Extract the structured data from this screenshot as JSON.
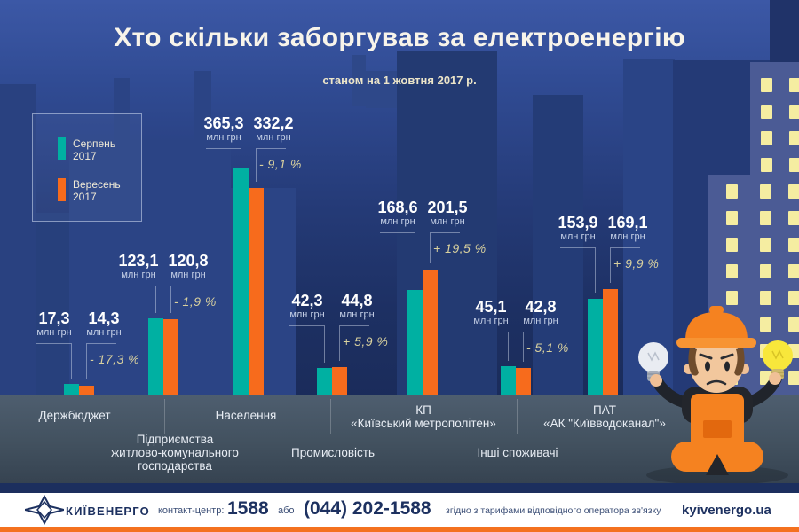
{
  "header": {
    "title": "Хто скільки заборгував за електроенергію",
    "subtitle": "станом на 1 жовтня 2017 р."
  },
  "legend": {
    "items": [
      {
        "line1": "Серпень",
        "line2": "2017",
        "color": "#00b0a2"
      },
      {
        "line1": "Вересень",
        "line2": "2017",
        "color": "#f76b1c"
      }
    ]
  },
  "chart_data": {
    "type": "bar",
    "title": "Хто скільки заборгував за електроенергію",
    "subtitle": "станом на 1 жовтня 2017 р.",
    "unit": "млн грн",
    "ylim": [
      0,
      380
    ],
    "grid": false,
    "legend_position": "top-left",
    "series": [
      {
        "name": "Серпень 2017",
        "color": "#00b0a2"
      },
      {
        "name": "Вересень 2017",
        "color": "#f76b1c"
      }
    ],
    "groups": [
      {
        "category_lines": [
          "Держбюджет"
        ],
        "values": [
          17.3,
          14.3
        ],
        "display": [
          "17,3",
          "14,3"
        ],
        "change": "- 17,3 %"
      },
      {
        "category_lines": [
          "Підприємства",
          "житлово-комунального",
          "господарства"
        ],
        "values": [
          123.1,
          120.8
        ],
        "display": [
          "123,1",
          "120,8"
        ],
        "change": "- 1,9 %"
      },
      {
        "category_lines": [
          "Населення"
        ],
        "values": [
          365.3,
          332.2
        ],
        "display": [
          "365,3",
          "332,2"
        ],
        "change": "- 9,1 %"
      },
      {
        "category_lines": [
          "Промисловість"
        ],
        "values": [
          42.3,
          44.8
        ],
        "display": [
          "42,3",
          "44,8"
        ],
        "change": "+ 5,9 %"
      },
      {
        "category_lines": [
          "КП",
          "«Київський метрополітен»"
        ],
        "values": [
          168.6,
          201.5
        ],
        "display": [
          "168,6",
          "201,5"
        ],
        "change": "+ 19,5 %"
      },
      {
        "category_lines": [
          "Інші споживачі"
        ],
        "values": [
          45.1,
          42.8
        ],
        "display": [
          "45,1",
          "42,8"
        ],
        "change": "- 5,1 %"
      },
      {
        "category_lines": [
          "ПАТ",
          "«АК \"Київводоканал\"»"
        ],
        "values": [
          153.9,
          169.1
        ],
        "display": [
          "153,9",
          "169,1"
        ],
        "change": "+ 9,9 %"
      }
    ]
  },
  "footer": {
    "brand": "КИЇВЕНЕРГО",
    "contact_label": "контакт-центр:",
    "phone_short": "1588",
    "or_label": "або",
    "phone_full": "(044) 202-1588",
    "tariff_note": "згідно з тарифами відповідного оператора зв'язку",
    "website": "kyivenergo.ua"
  },
  "colors": {
    "august_bar": "#00b0a2",
    "september_bar": "#f76b1c",
    "percent_text": "#d9d19e",
    "band": "#42515f",
    "footer_navy": "#1d3160",
    "footer_orange": "#f4711f",
    "window_light": "#f5eda1"
  }
}
